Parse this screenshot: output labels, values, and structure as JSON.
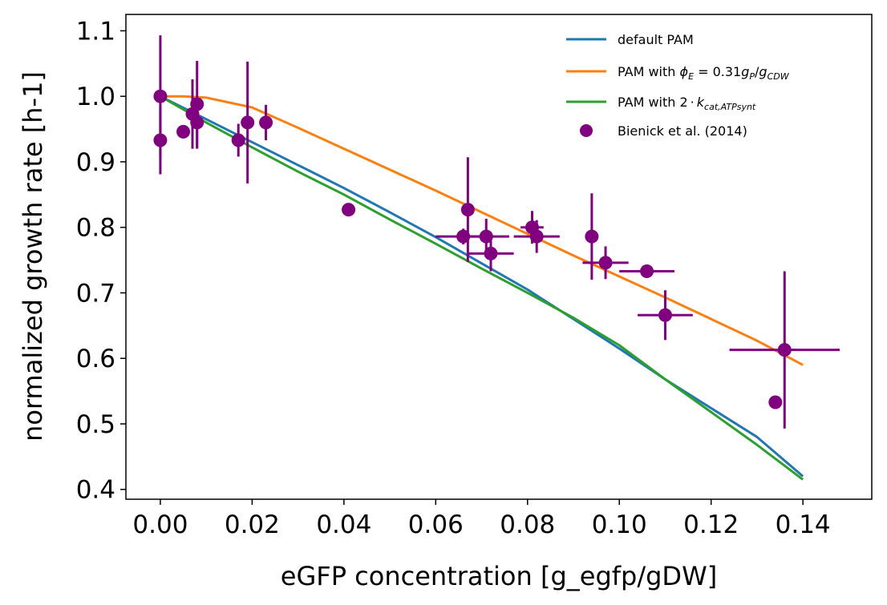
{
  "chart_data": {
    "type": "line",
    "title": "",
    "xlabel": "eGFP concentration [g_egfp/gDW]",
    "ylabel": "normalized growth rate [h-1]",
    "xlim": [
      -0.0075,
      0.155
    ],
    "ylim": [
      0.385,
      1.125
    ],
    "xticks": [
      "0.00",
      "0.02",
      "0.04",
      "0.06",
      "0.08",
      "0.10",
      "0.12",
      "0.14"
    ],
    "yticks": [
      "0.4",
      "0.5",
      "0.6",
      "0.7",
      "0.8",
      "0.9",
      "1.0",
      "1.1"
    ],
    "grid": false,
    "legend_position": "top-right",
    "series": [
      {
        "name": "default PAM",
        "kind": "line",
        "color": "#1f77b4",
        "x": [
          0.0,
          0.01,
          0.02,
          0.03,
          0.04,
          0.05,
          0.06,
          0.07,
          0.08,
          0.09,
          0.1,
          0.11,
          0.12,
          0.13,
          0.14
        ],
        "y": [
          1.0,
          0.965,
          0.93,
          0.895,
          0.86,
          0.823,
          0.785,
          0.745,
          0.705,
          0.66,
          0.615,
          0.568,
          0.524,
          0.48,
          0.42
        ]
      },
      {
        "name": "PAM with ϕE = 0.31gP/gCDW",
        "name_main": "PAM with ",
        "name_math": "ϕ",
        "name_math_sub": "E",
        "name_math_rest": " = 0.31",
        "name_g1": "g",
        "name_g1_sub": "P",
        "name_slash": "/",
        "name_g2": "g",
        "name_g2_sub": "CDW",
        "kind": "line",
        "color": "#ff7f0e",
        "x": [
          0.0,
          0.005,
          0.01,
          0.02,
          0.03,
          0.04,
          0.05,
          0.06,
          0.07,
          0.08,
          0.09,
          0.1,
          0.11,
          0.12,
          0.13,
          0.14
        ],
        "y": [
          1.0,
          1.0,
          0.998,
          0.983,
          0.952,
          0.92,
          0.888,
          0.856,
          0.823,
          0.79,
          0.757,
          0.725,
          0.693,
          0.66,
          0.627,
          0.59
        ]
      },
      {
        "name": "PAM with 2·kcat,ATPsynt",
        "name_main": "PAM with 2",
        "name_dot": "·",
        "name_k": "k",
        "name_k_sub": "cat,ATPsynt",
        "kind": "line",
        "color": "#2ca02c",
        "x": [
          0.0,
          0.01,
          0.02,
          0.03,
          0.04,
          0.05,
          0.06,
          0.07,
          0.08,
          0.09,
          0.1,
          0.11,
          0.12,
          0.13,
          0.14
        ],
        "y": [
          1.0,
          0.96,
          0.922,
          0.885,
          0.85,
          0.812,
          0.775,
          0.737,
          0.7,
          0.662,
          0.62,
          0.568,
          0.518,
          0.468,
          0.415
        ]
      },
      {
        "name": "Bienick et al. (2014)",
        "kind": "scatter",
        "color": "#800080",
        "points": [
          {
            "x": 0.0,
            "y": 1.0,
            "xerr": 0.0,
            "yerr": 0.093
          },
          {
            "x": 0.0,
            "y": 0.933,
            "xerr": 0.0,
            "yerr": 0.052
          },
          {
            "x": 0.005,
            "y": 0.946,
            "xerr": 0.0007,
            "yerr": 0.01
          },
          {
            "x": 0.007,
            "y": 0.973,
            "xerr": 0.0005,
            "yerr": 0.053
          },
          {
            "x": 0.008,
            "y": 0.988,
            "xerr": 0.0007,
            "yerr": 0.066
          },
          {
            "x": 0.008,
            "y": 0.96,
            "xerr": 0.0009,
            "yerr": 0.04
          },
          {
            "x": 0.017,
            "y": 0.933,
            "xerr": 0.0007,
            "yerr": 0.025
          },
          {
            "x": 0.019,
            "y": 0.96,
            "xerr": 0.0007,
            "yerr": 0.093
          },
          {
            "x": 0.023,
            "y": 0.96,
            "xerr": 0.0009,
            "yerr": 0.027
          },
          {
            "x": 0.041,
            "y": 0.827,
            "xerr": 0.0009,
            "yerr": 0.007
          },
          {
            "x": 0.066,
            "y": 0.786,
            "xerr": 0.006,
            "yerr": 0.012
          },
          {
            "x": 0.067,
            "y": 0.827,
            "xerr": 0.0007,
            "yerr": 0.08
          },
          {
            "x": 0.071,
            "y": 0.786,
            "xerr": 0.005,
            "yerr": 0.027
          },
          {
            "x": 0.072,
            "y": 0.76,
            "xerr": 0.005,
            "yerr": 0.027
          },
          {
            "x": 0.081,
            "y": 0.8,
            "xerr": 0.0025,
            "yerr": 0.025
          },
          {
            "x": 0.082,
            "y": 0.786,
            "xerr": 0.005,
            "yerr": 0.025
          },
          {
            "x": 0.094,
            "y": 0.786,
            "xerr": 0.0009,
            "yerr": 0.066
          },
          {
            "x": 0.097,
            "y": 0.746,
            "xerr": 0.005,
            "yerr": 0.025
          },
          {
            "x": 0.106,
            "y": 0.733,
            "xerr": 0.006,
            "yerr": 0.008
          },
          {
            "x": 0.11,
            "y": 0.666,
            "xerr": 0.006,
            "yerr": 0.038
          },
          {
            "x": 0.134,
            "y": 0.533,
            "xerr": 0.0009,
            "yerr": 0.01
          },
          {
            "x": 0.136,
            "y": 0.613,
            "xerr": 0.012,
            "yerr": 0.12
          }
        ]
      }
    ]
  }
}
